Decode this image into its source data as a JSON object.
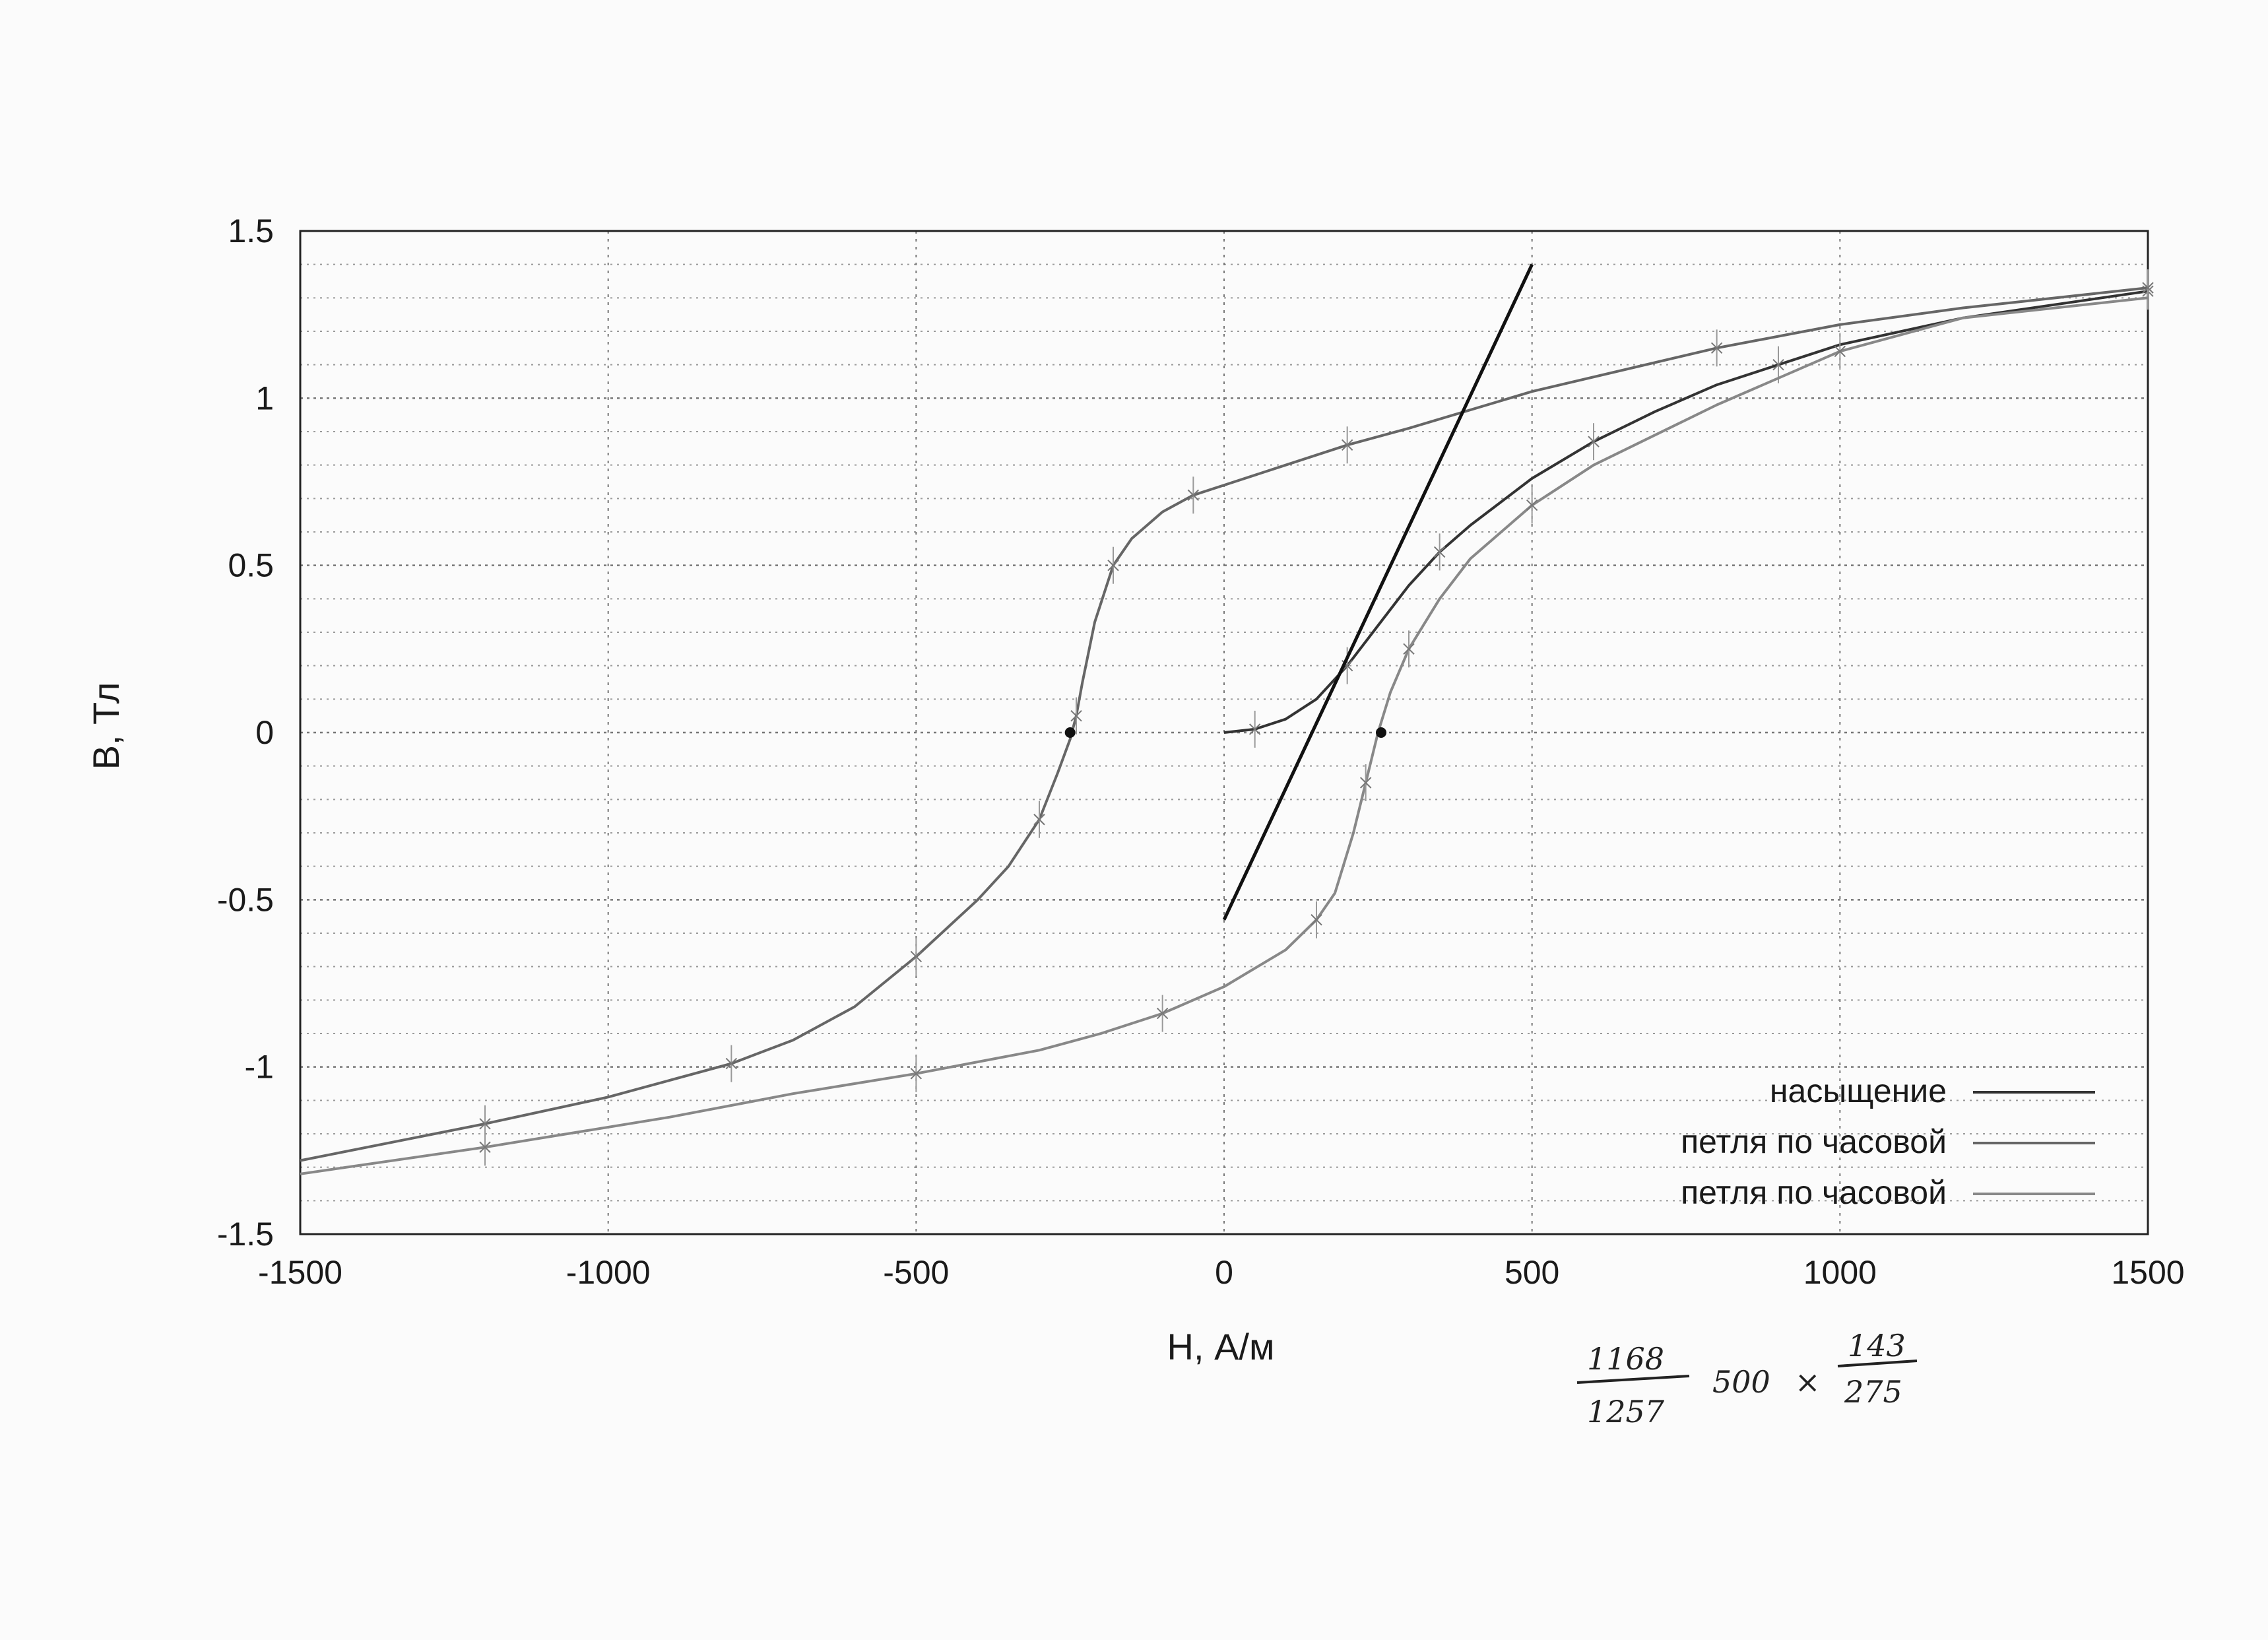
{
  "chart_data": {
    "type": "line",
    "title": "",
    "xlabel": "H, А/м",
    "ylabel": "B, Тл",
    "xlim": [
      -1500,
      1500
    ],
    "ylim": [
      -1.5,
      1.5
    ],
    "x_ticks": [
      "-1500",
      "-1000",
      "-500",
      "0",
      "500",
      "1000",
      "1500"
    ],
    "y_ticks": [
      "1.5",
      "1",
      "0.5",
      "0",
      "-0.5",
      "-1",
      "-1.5"
    ],
    "grid": true,
    "legend_position": "bottom-right",
    "legend": [
      "насыщение",
      "петля по часовой",
      "петля по часовой"
    ],
    "series": [
      {
        "name": "насыщение",
        "color": "#333333",
        "x": [
          0,
          50,
          100,
          150,
          200,
          250,
          300,
          350,
          400,
          500,
          600,
          700,
          800,
          900,
          1000,
          1200,
          1500
        ],
        "y": [
          0,
          0.01,
          0.04,
          0.1,
          0.2,
          0.32,
          0.44,
          0.54,
          0.62,
          0.76,
          0.87,
          0.96,
          1.04,
          1.1,
          1.16,
          1.24,
          1.32
        ]
      },
      {
        "name": "петля по часовой",
        "color": "#666666",
        "x": [
          -1500,
          -1200,
          -1000,
          -900,
          -800,
          -700,
          -600,
          -500,
          -400,
          -350,
          -300,
          -270,
          -250,
          -240,
          -230,
          -210,
          -180,
          -150,
          -100,
          -50,
          0,
          100,
          200,
          300,
          500,
          800,
          1000,
          1200,
          1500
        ],
        "y": [
          -1.28,
          -1.17,
          -1.09,
          -1.04,
          -0.99,
          -0.92,
          -0.82,
          -0.67,
          -0.5,
          -0.4,
          -0.26,
          -0.12,
          -0.02,
          0.05,
          0.15,
          0.33,
          0.5,
          0.58,
          0.66,
          0.71,
          0.74,
          0.8,
          0.86,
          0.91,
          1.02,
          1.15,
          1.22,
          1.27,
          1.33
        ]
      },
      {
        "name": "петля по часовой",
        "color": "#888888",
        "x": [
          -1500,
          -1200,
          -900,
          -700,
          -500,
          -300,
          -200,
          -100,
          0,
          100,
          150,
          180,
          210,
          230,
          250,
          270,
          300,
          350,
          400,
          500,
          600,
          800,
          1000,
          1200,
          1500
        ],
        "y": [
          -1.32,
          -1.24,
          -1.15,
          -1.08,
          -1.02,
          -0.95,
          -0.9,
          -0.84,
          -0.76,
          -0.65,
          -0.56,
          -0.48,
          -0.3,
          -0.15,
          0,
          0.12,
          0.25,
          0.4,
          0.52,
          0.68,
          0.8,
          0.98,
          1.14,
          1.24,
          1.3
        ]
      },
      {
        "name": "",
        "color": "#111111",
        "x": [
          0,
          500
        ],
        "y": [
          -0.56,
          1.4
        ]
      }
    ],
    "coercive_points": [
      {
        "x": -250,
        "y": 0
      },
      {
        "x": 255,
        "y": 0
      }
    ],
    "handwritten_note": {
      "text": "1168 / 1257 · 500 × 143/275",
      "parts": [
        "1168",
        "1257",
        "500",
        "×",
        "143",
        "275"
      ]
    }
  }
}
